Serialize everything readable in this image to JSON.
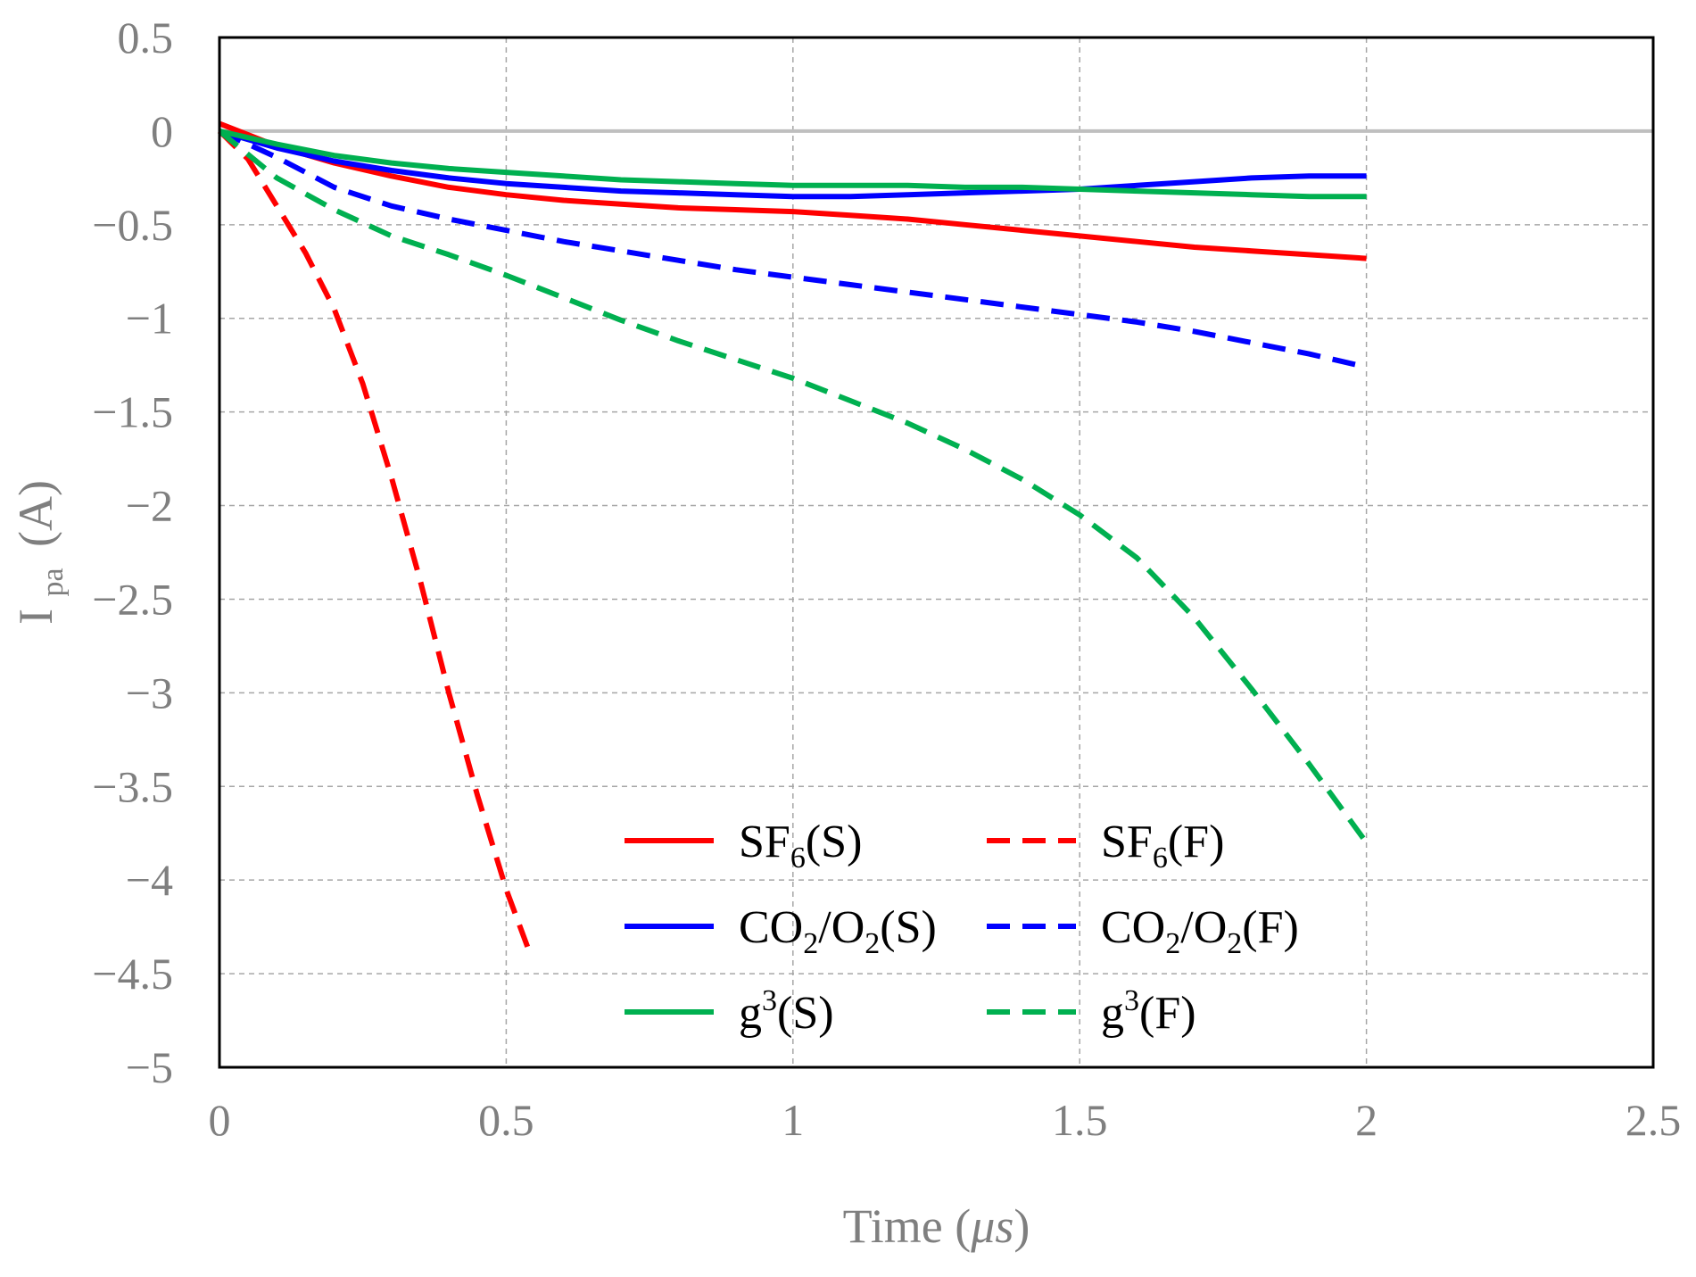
{
  "chart_data": {
    "type": "line",
    "xlabel": "Time",
    "xlabel_unit": "μs",
    "ylabel": "I",
    "ylabel_sub": "pa",
    "ylabel_unit": "(A)",
    "xlim": [
      0,
      2.5
    ],
    "ylim": [
      -5,
      0.5
    ],
    "x_ticks": [
      0,
      0.5,
      1,
      1.5,
      2,
      2.5
    ],
    "y_ticks": [
      0.5,
      0,
      -0.5,
      -1,
      -1.5,
      -2,
      -2.5,
      -3,
      -3.5,
      -4,
      -4.5,
      -5
    ],
    "x_tick_labels": [
      "0",
      "0.5",
      "1",
      "1.5",
      "2",
      "2.5"
    ],
    "y_tick_labels": [
      "0.5",
      "0",
      "−0.5",
      "−1",
      "−1.5",
      "−2",
      "−2.5",
      "−3",
      "−3.5",
      "−4",
      "−4.5",
      "−5"
    ],
    "grid": true,
    "legend_position": "bottom-center",
    "series": [
      {
        "name": "SF6(S)",
        "label_main": "SF",
        "label_sub": "6",
        "label_tail": "(S)",
        "color": "#ff0000",
        "style": "solid",
        "x": [
          0,
          0.1,
          0.2,
          0.3,
          0.4,
          0.5,
          0.6,
          0.7,
          0.8,
          0.9,
          1.0,
          1.1,
          1.2,
          1.3,
          1.4,
          1.5,
          1.6,
          1.7,
          1.8,
          1.9,
          2.0
        ],
        "y": [
          0.04,
          -0.08,
          -0.17,
          -0.24,
          -0.3,
          -0.34,
          -0.37,
          -0.39,
          -0.41,
          -0.42,
          -0.43,
          -0.45,
          -0.47,
          -0.5,
          -0.53,
          -0.56,
          -0.59,
          -0.62,
          -0.64,
          -0.66,
          -0.68
        ]
      },
      {
        "name": "SF6(F)",
        "label_main": "SF",
        "label_sub": "6",
        "label_tail": "(F)",
        "color": "#ff0000",
        "style": "dashed",
        "x": [
          0,
          0.05,
          0.1,
          0.15,
          0.2,
          0.25,
          0.3,
          0.35,
          0.4,
          0.45,
          0.5,
          0.54
        ],
        "y": [
          0,
          -0.15,
          -0.4,
          -0.65,
          -0.95,
          -1.35,
          -1.85,
          -2.4,
          -3.0,
          -3.55,
          -4.05,
          -4.38
        ]
      },
      {
        "name": "CO2/O2(S)",
        "label_main": "CO",
        "label_sub": "2",
        "label_mid": "/O",
        "label_sub2": "2",
        "label_tail": "(S)",
        "color": "#0000ff",
        "style": "solid",
        "x": [
          0,
          0.1,
          0.2,
          0.3,
          0.4,
          0.5,
          0.6,
          0.7,
          0.8,
          0.9,
          1.0,
          1.1,
          1.2,
          1.3,
          1.4,
          1.5,
          1.6,
          1.7,
          1.8,
          1.9,
          2.0
        ],
        "y": [
          0,
          -0.09,
          -0.16,
          -0.21,
          -0.25,
          -0.28,
          -0.3,
          -0.32,
          -0.33,
          -0.34,
          -0.35,
          -0.35,
          -0.34,
          -0.33,
          -0.32,
          -0.31,
          -0.29,
          -0.27,
          -0.25,
          -0.24,
          -0.24
        ]
      },
      {
        "name": "CO2/O2(F)",
        "label_main": "CO",
        "label_sub": "2",
        "label_mid": "/O",
        "label_sub2": "2",
        "label_tail": "(F)",
        "color": "#0000ff",
        "style": "dashed",
        "x": [
          0,
          0.1,
          0.2,
          0.3,
          0.4,
          0.5,
          0.6,
          0.7,
          0.8,
          0.9,
          1.0,
          1.1,
          1.2,
          1.3,
          1.4,
          1.5,
          1.6,
          1.7,
          1.8,
          1.9,
          2.0
        ],
        "y": [
          0,
          -0.14,
          -0.3,
          -0.4,
          -0.47,
          -0.53,
          -0.59,
          -0.64,
          -0.69,
          -0.74,
          -0.78,
          -0.82,
          -0.86,
          -0.9,
          -0.94,
          -0.98,
          -1.02,
          -1.07,
          -1.13,
          -1.19,
          -1.26
        ]
      },
      {
        "name": "g3(S)",
        "label_main": "g",
        "label_sup": "3",
        "label_tail": "(S)",
        "color": "#00b050",
        "style": "solid",
        "x": [
          0,
          0.1,
          0.2,
          0.3,
          0.4,
          0.5,
          0.6,
          0.7,
          0.8,
          0.9,
          1.0,
          1.1,
          1.2,
          1.3,
          1.4,
          1.5,
          1.6,
          1.7,
          1.8,
          1.9,
          2.0
        ],
        "y": [
          0,
          -0.07,
          -0.13,
          -0.17,
          -0.2,
          -0.22,
          -0.24,
          -0.26,
          -0.27,
          -0.28,
          -0.29,
          -0.29,
          -0.29,
          -0.3,
          -0.3,
          -0.31,
          -0.32,
          -0.33,
          -0.34,
          -0.35,
          -0.35
        ]
      },
      {
        "name": "g3(F)",
        "label_main": "g",
        "label_sup": "3",
        "label_tail": "(F)",
        "color": "#00b050",
        "style": "dashed",
        "x": [
          0,
          0.1,
          0.2,
          0.3,
          0.4,
          0.5,
          0.6,
          0.7,
          0.8,
          0.9,
          1.0,
          1.1,
          1.2,
          1.3,
          1.4,
          1.5,
          1.6,
          1.7,
          1.8,
          1.9,
          2.0
        ],
        "y": [
          0,
          -0.25,
          -0.42,
          -0.56,
          -0.66,
          -0.77,
          -0.89,
          -1.01,
          -1.12,
          -1.22,
          -1.32,
          -1.44,
          -1.56,
          -1.7,
          -1.86,
          -2.05,
          -2.28,
          -2.6,
          -2.98,
          -3.38,
          -3.8
        ]
      }
    ]
  }
}
